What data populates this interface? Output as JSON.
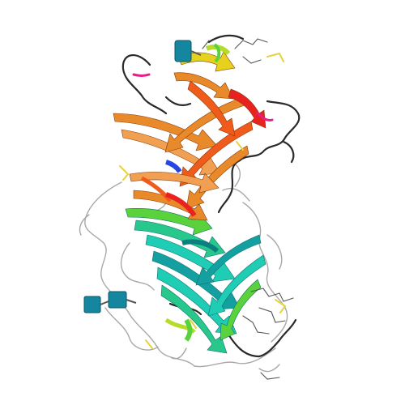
{
  "image": {
    "subject": "protein-ribbon-structure",
    "background_color": "#ffffff",
    "colors": {
      "red": "#e8231f",
      "orange_red": "#f05a1a",
      "orange": "#e8892a",
      "light_orange": "#f0a050",
      "yellow": "#e6d21e",
      "yellow_green": "#b4dc28",
      "green": "#5ad23c",
      "teal_green": "#28c88c",
      "cyan": "#1ecdb4",
      "teal": "#14a0a0",
      "blue": "#2846e6",
      "coil": "#2a2a2a",
      "loop_gray": "#a8a8a8",
      "magenta": "#e61e8c",
      "sugar": "#1486a0",
      "sulfur": "#e6d23c"
    }
  }
}
